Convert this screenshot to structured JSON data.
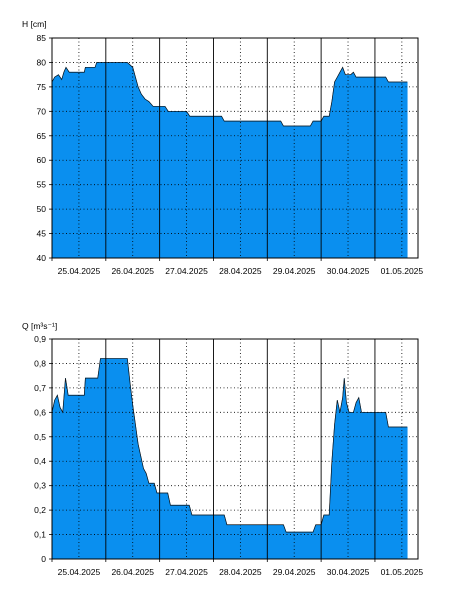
{
  "chart_data": [
    {
      "type": "area",
      "ylabel": "H [cm]",
      "ylim": [
        40,
        85
      ],
      "yticks": [
        "40",
        "45",
        "50",
        "55",
        "60",
        "65",
        "70",
        "75",
        "80",
        "85"
      ],
      "xlabels": [
        "25.04.2025",
        "26.04.2025",
        "27.04.2025",
        "28.04.2025",
        "29.04.2025",
        "30.04.2025",
        "01.05.2025"
      ],
      "xlim": [
        0,
        6.8
      ],
      "grid": true,
      "color": "#0a8fef",
      "points": [
        [
          0.0,
          76
        ],
        [
          0.05,
          77
        ],
        [
          0.12,
          77.5
        ],
        [
          0.18,
          76.5
        ],
        [
          0.22,
          78
        ],
        [
          0.26,
          79
        ],
        [
          0.32,
          78
        ],
        [
          0.6,
          78
        ],
        [
          0.62,
          79
        ],
        [
          0.8,
          79
        ],
        [
          0.83,
          80
        ],
        [
          1.0,
          80
        ],
        [
          1.4,
          80
        ],
        [
          1.5,
          79
        ],
        [
          1.55,
          77
        ],
        [
          1.6,
          75
        ],
        [
          1.66,
          73.5
        ],
        [
          1.73,
          72.5
        ],
        [
          1.8,
          72
        ],
        [
          1.88,
          71
        ],
        [
          2.1,
          71
        ],
        [
          2.16,
          70
        ],
        [
          2.5,
          70
        ],
        [
          2.56,
          69
        ],
        [
          3.15,
          69
        ],
        [
          3.2,
          68
        ],
        [
          4.25,
          68
        ],
        [
          4.3,
          67
        ],
        [
          4.8,
          67
        ],
        [
          4.85,
          68
        ],
        [
          5.0,
          68
        ],
        [
          5.05,
          69
        ],
        [
          5.15,
          69
        ],
        [
          5.2,
          72
        ],
        [
          5.25,
          76
        ],
        [
          5.3,
          77
        ],
        [
          5.35,
          78
        ],
        [
          5.4,
          79
        ],
        [
          5.45,
          77.5
        ],
        [
          5.55,
          77.5
        ],
        [
          5.6,
          78
        ],
        [
          5.65,
          77
        ],
        [
          6.2,
          77
        ],
        [
          6.25,
          76
        ],
        [
          6.6,
          76
        ]
      ]
    },
    {
      "type": "area",
      "ylabel": "Q [m³s⁻¹]",
      "ylim": [
        0,
        0.9
      ],
      "yticks": [
        "0",
        "0,1",
        "0,2",
        "0,3",
        "0,4",
        "0,5",
        "0,6",
        "0,7",
        "0,8",
        "0,9"
      ],
      "xlabels": [
        "25.04.2025",
        "26.04.2025",
        "27.04.2025",
        "28.04.2025",
        "29.04.2025",
        "30.04.2025",
        "01.05.2025"
      ],
      "xlim": [
        0,
        6.8
      ],
      "grid": true,
      "color": "#0a8fef",
      "points": [
        [
          0.0,
          0.6
        ],
        [
          0.05,
          0.65
        ],
        [
          0.1,
          0.67
        ],
        [
          0.15,
          0.62
        ],
        [
          0.2,
          0.6
        ],
        [
          0.25,
          0.74
        ],
        [
          0.28,
          0.7
        ],
        [
          0.3,
          0.67
        ],
        [
          0.6,
          0.67
        ],
        [
          0.62,
          0.74
        ],
        [
          0.85,
          0.74
        ],
        [
          0.9,
          0.82
        ],
        [
          1.4,
          0.82
        ],
        [
          1.45,
          0.72
        ],
        [
          1.5,
          0.63
        ],
        [
          1.55,
          0.55
        ],
        [
          1.6,
          0.47
        ],
        [
          1.65,
          0.42
        ],
        [
          1.7,
          0.37
        ],
        [
          1.75,
          0.35
        ],
        [
          1.8,
          0.31
        ],
        [
          1.9,
          0.31
        ],
        [
          1.95,
          0.27
        ],
        [
          2.15,
          0.27
        ],
        [
          2.2,
          0.22
        ],
        [
          2.55,
          0.22
        ],
        [
          2.6,
          0.18
        ],
        [
          3.2,
          0.18
        ],
        [
          3.25,
          0.14
        ],
        [
          4.3,
          0.14
        ],
        [
          4.35,
          0.11
        ],
        [
          4.85,
          0.11
        ],
        [
          4.9,
          0.14
        ],
        [
          5.0,
          0.14
        ],
        [
          5.05,
          0.18
        ],
        [
          5.15,
          0.18
        ],
        [
          5.2,
          0.4
        ],
        [
          5.25,
          0.55
        ],
        [
          5.3,
          0.65
        ],
        [
          5.35,
          0.6
        ],
        [
          5.4,
          0.66
        ],
        [
          5.43,
          0.74
        ],
        [
          5.47,
          0.64
        ],
        [
          5.52,
          0.6
        ],
        [
          5.6,
          0.6
        ],
        [
          5.65,
          0.64
        ],
        [
          5.7,
          0.66
        ],
        [
          5.75,
          0.6
        ],
        [
          6.2,
          0.6
        ],
        [
          6.25,
          0.54
        ],
        [
          6.6,
          0.54
        ]
      ]
    }
  ]
}
